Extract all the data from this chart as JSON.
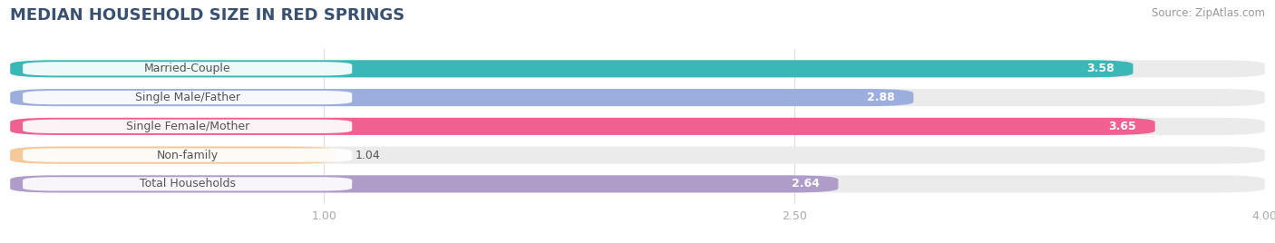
{
  "title": "MEDIAN HOUSEHOLD SIZE IN RED SPRINGS",
  "source": "Source: ZipAtlas.com",
  "categories": [
    "Married-Couple",
    "Single Male/Father",
    "Single Female/Mother",
    "Non-family",
    "Total Households"
  ],
  "values": [
    3.58,
    2.88,
    3.65,
    1.04,
    2.64
  ],
  "colors": [
    "#3ab8b8",
    "#9baedd",
    "#f06090",
    "#f5c99a",
    "#b09cc8"
  ],
  "xlim": [
    0,
    4.0
  ],
  "xticks": [
    1.0,
    2.5,
    4.0
  ],
  "bar_height": 0.6,
  "background_color": "#ffffff",
  "bar_bg_color": "#ebebeb",
  "title_fontsize": 13,
  "label_fontsize": 9,
  "value_fontsize": 9,
  "source_fontsize": 8.5,
  "title_color": "#3a5070",
  "label_color": "#555555",
  "tick_color": "#aaaaaa"
}
